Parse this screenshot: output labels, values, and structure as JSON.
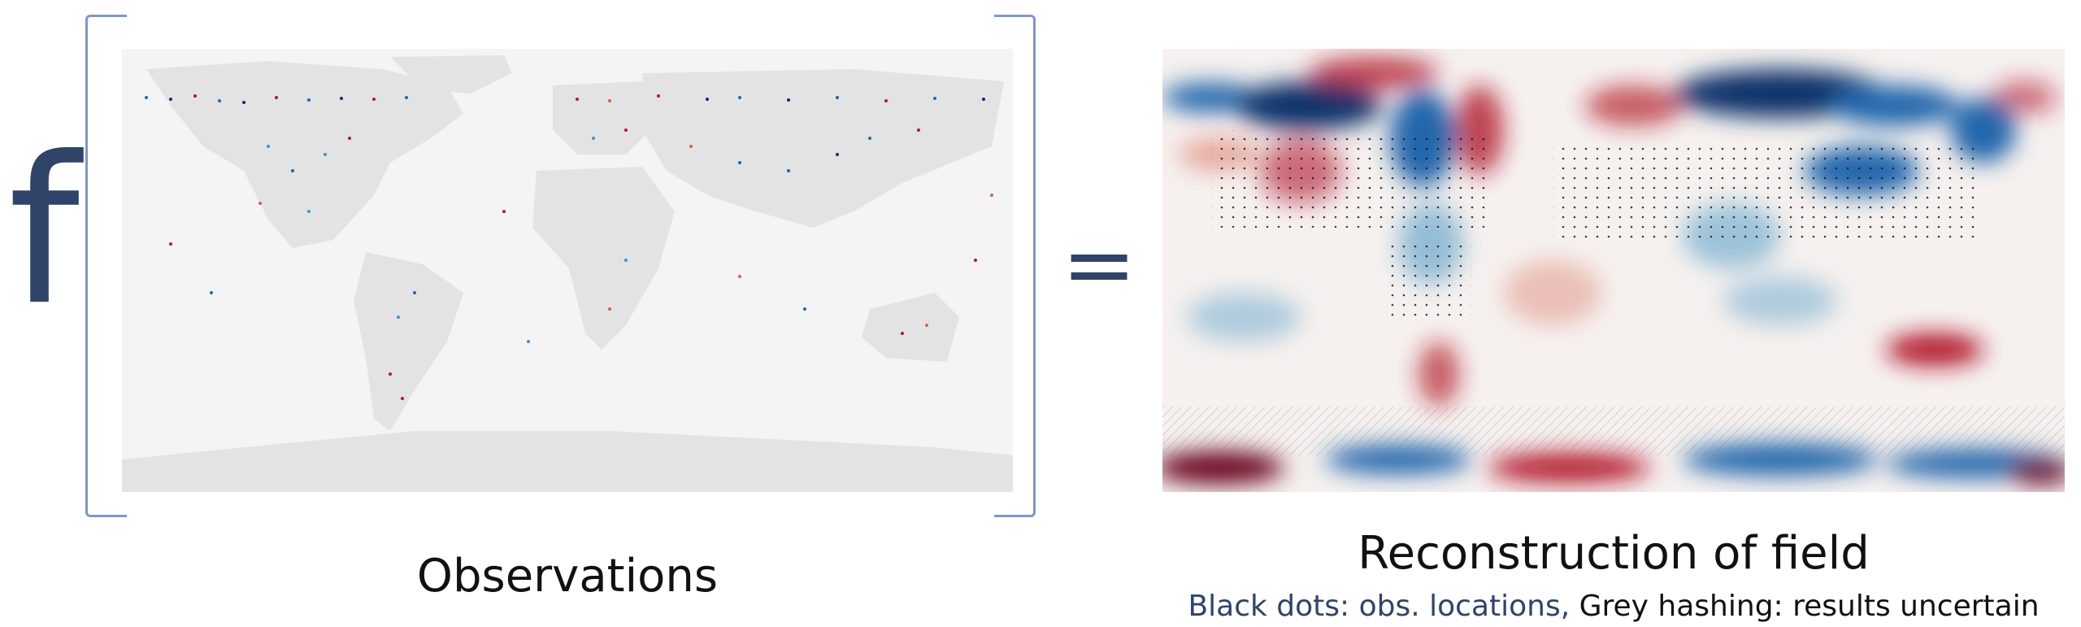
{
  "function_symbol": "f",
  "equals_symbol": "=",
  "observations_panel": {
    "caption": "Observations"
  },
  "reconstruction_panel": {
    "caption": "Reconstruction of field",
    "legend_dots": "Black dots: obs. locations,",
    "legend_hashing": "Grey hashing: results uncertain"
  },
  "colors": {
    "warm_anomaly": "#b2182b",
    "cold_anomaly": "#2166ac",
    "land": "#e3e3e3",
    "ocean": "#f4f4f4",
    "bracket": "#7f97c8",
    "text_dark_blue": "#2f4468"
  }
}
